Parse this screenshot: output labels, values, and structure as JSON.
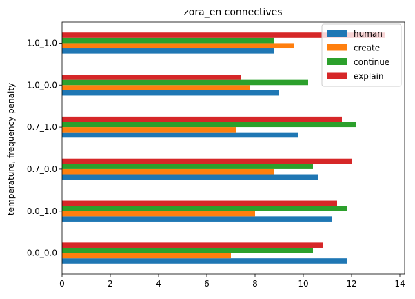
{
  "chart_data": {
    "type": "bar",
    "orientation": "horizontal",
    "title": "zora_en connectives",
    "ylabel": "temperature, frequency penalty",
    "xlabel": "",
    "categories": [
      "0.0_0.0",
      "0.0_1.0",
      "0.7_0.0",
      "0.7_1.0",
      "1.0_0.0",
      "1.0_1.0"
    ],
    "xlim": [
      0,
      14.2
    ],
    "xticks": [
      0,
      2,
      4,
      6,
      8,
      10,
      12,
      14
    ],
    "grid": false,
    "legend_position": "top-right",
    "series": [
      {
        "name": "human",
        "color": "#1f77b4",
        "values": [
          11.8,
          11.2,
          10.6,
          9.8,
          9.0,
          8.8
        ]
      },
      {
        "name": "create",
        "color": "#ff7f0e",
        "values": [
          7.0,
          8.0,
          8.8,
          7.2,
          7.8,
          9.6
        ]
      },
      {
        "name": "continue",
        "color": "#2ca02c",
        "values": [
          10.4,
          11.8,
          10.4,
          12.2,
          10.2,
          8.8
        ]
      },
      {
        "name": "explain",
        "color": "#d62728",
        "values": [
          10.8,
          11.4,
          12.0,
          11.6,
          7.4,
          13.4
        ]
      }
    ]
  }
}
